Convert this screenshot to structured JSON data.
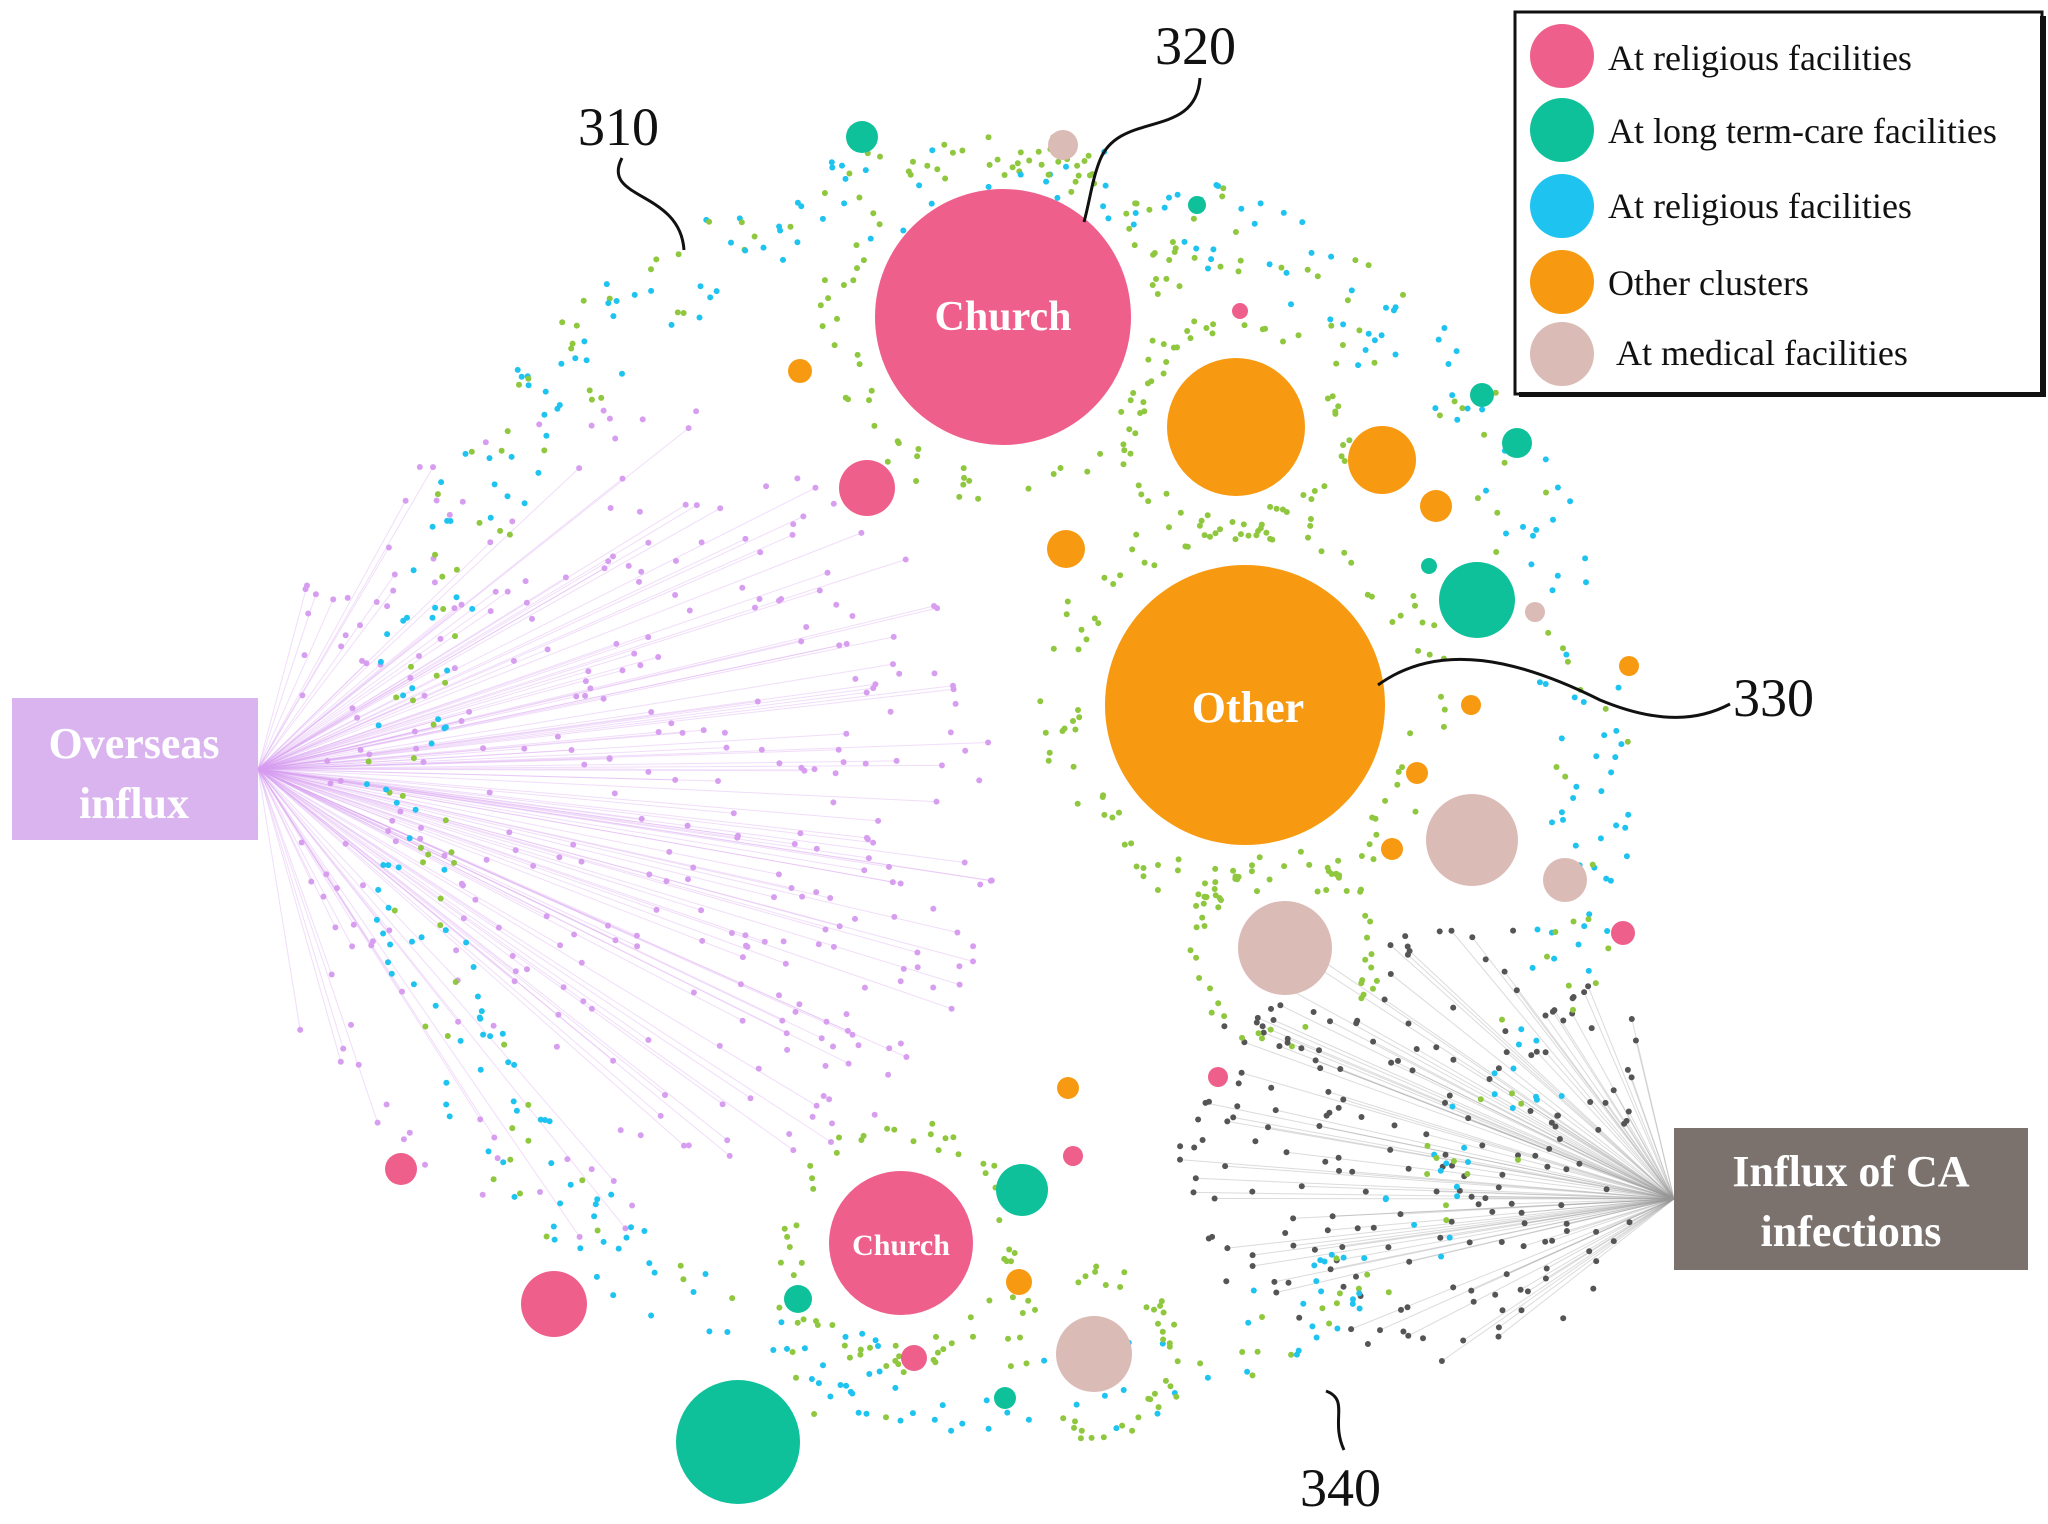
{
  "legend": {
    "items": [
      {
        "label": "At religious facilities",
        "color": "#ef5f8c"
      },
      {
        "label": "At long term-care facilities",
        "color": "#0fc19a"
      },
      {
        "label": "At religious facilities",
        "color": "#1ec4ef"
      },
      {
        "label": "Other clusters",
        "color": "#f79a11"
      },
      {
        "label": "At medical facilities",
        "color": "#dbbbb6"
      }
    ]
  },
  "hubs": {
    "overseas": {
      "line1": "Overseas",
      "line2": "influx",
      "color": "#dab4ef"
    },
    "ca": {
      "line1": "Influx of CA",
      "line2": "infections",
      "color": "#7b726d"
    }
  },
  "clusters": {
    "church_top": "Church",
    "other": "Other",
    "church_bottom": "Church"
  },
  "refs": {
    "r310": "310",
    "r320": "320",
    "r330": "330",
    "r340": "340"
  },
  "colors": {
    "pink": "#ef5f8c",
    "teal": "#0fc19a",
    "cyan": "#1ec4ef",
    "orange": "#f79a11",
    "tan": "#dbbbb6",
    "violet": "#d79ef0",
    "green": "#8fc73e",
    "dark": "#555555"
  }
}
